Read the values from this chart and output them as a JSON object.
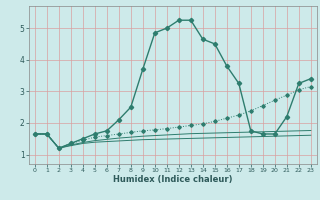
{
  "title": "",
  "xlabel": "Humidex (Indice chaleur)",
  "x_ticks": [
    0,
    1,
    2,
    3,
    4,
    5,
    6,
    7,
    8,
    9,
    10,
    11,
    12,
    13,
    14,
    15,
    16,
    17,
    18,
    19,
    20,
    21,
    22,
    23
  ],
  "ylim": [
    0.7,
    5.7
  ],
  "xlim": [
    -0.5,
    23.5
  ],
  "bg_color": "#cdeaea",
  "grid_color": "#d9a0a0",
  "line_color": "#2e7d6e",
  "lines": [
    {
      "x": [
        0,
        1,
        2,
        3,
        4,
        5,
        6,
        7,
        8,
        9,
        10,
        11,
        12,
        13,
        14,
        15,
        16,
        17,
        18,
        19,
        20,
        21,
        22,
        23
      ],
      "y": [
        1.65,
        1.65,
        1.2,
        1.35,
        1.5,
        1.65,
        1.75,
        2.1,
        2.5,
        3.7,
        4.85,
        5.0,
        5.25,
        5.25,
        4.65,
        4.5,
        3.8,
        3.25,
        1.75,
        1.65,
        1.65,
        2.2,
        3.25,
        3.4
      ],
      "marker": "D",
      "markersize": 2.2,
      "linewidth": 1.0,
      "linestyle": "-"
    },
    {
      "x": [
        0,
        1,
        2,
        3,
        4,
        5,
        6,
        7,
        8,
        9,
        10,
        11,
        12,
        13,
        14,
        15,
        16,
        17,
        18,
        19,
        20,
        21,
        22,
        23
      ],
      "y": [
        1.65,
        1.65,
        1.2,
        1.35,
        1.45,
        1.55,
        1.6,
        1.65,
        1.7,
        1.75,
        1.78,
        1.82,
        1.87,
        1.92,
        1.97,
        2.05,
        2.15,
        2.25,
        2.38,
        2.55,
        2.72,
        2.88,
        3.05,
        3.15
      ],
      "marker": "D",
      "markersize": 1.8,
      "linewidth": 0.7,
      "linestyle": ":"
    },
    {
      "x": [
        0,
        1,
        2,
        3,
        4,
        5,
        6,
        7,
        8,
        9,
        10,
        11,
        12,
        13,
        14,
        15,
        16,
        17,
        18,
        19,
        20,
        21,
        22,
        23
      ],
      "y": [
        1.65,
        1.65,
        1.2,
        1.3,
        1.38,
        1.44,
        1.48,
        1.52,
        1.55,
        1.58,
        1.6,
        1.62,
        1.64,
        1.66,
        1.67,
        1.68,
        1.69,
        1.7,
        1.71,
        1.72,
        1.73,
        1.74,
        1.75,
        1.76
      ],
      "marker": null,
      "markersize": 0,
      "linewidth": 0.7,
      "linestyle": "-"
    },
    {
      "x": [
        0,
        1,
        2,
        3,
        4,
        5,
        6,
        7,
        8,
        9,
        10,
        11,
        12,
        13,
        14,
        15,
        16,
        17,
        18,
        19,
        20,
        21,
        22,
        23
      ],
      "y": [
        1.65,
        1.65,
        1.2,
        1.28,
        1.35,
        1.39,
        1.41,
        1.43,
        1.45,
        1.47,
        1.48,
        1.49,
        1.5,
        1.51,
        1.52,
        1.53,
        1.54,
        1.55,
        1.56,
        1.57,
        1.58,
        1.59,
        1.6,
        1.61
      ],
      "marker": null,
      "markersize": 0,
      "linewidth": 0.7,
      "linestyle": "-"
    }
  ]
}
